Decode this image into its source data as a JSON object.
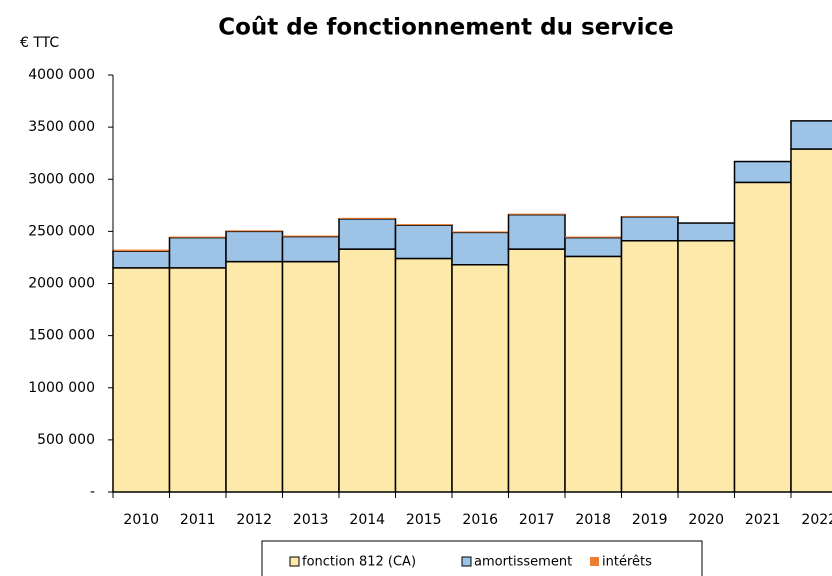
{
  "chart_data": {
    "type": "stacked_bar",
    "title": "Coût de fonctionnement du service",
    "y_axis_label": "€ TTC",
    "categories": [
      "2010",
      "2011",
      "2012",
      "2013",
      "2014",
      "2015",
      "2016",
      "2017",
      "2018",
      "2019",
      "2020",
      "2021",
      "2022"
    ],
    "series": [
      {
        "name": "fonction 812 (CA)",
        "color": "#fde9a9",
        "values": [
          2150000,
          2150000,
          2210000,
          2210000,
          2330000,
          2240000,
          2180000,
          2330000,
          2260000,
          2410000,
          2410000,
          2970000,
          3290000
        ]
      },
      {
        "name": "amortissement",
        "color": "#9dc3e6",
        "values": [
          160000,
          290000,
          290000,
          240000,
          290000,
          320000,
          310000,
          330000,
          180000,
          230000,
          170000,
          200000,
          270000
        ]
      },
      {
        "name": "intérêts",
        "color": "#ed7d31",
        "values": [
          15000,
          10000,
          10000,
          10000,
          10000,
          10000,
          10000,
          10000,
          10000,
          8000,
          0,
          0,
          0
        ]
      }
    ],
    "ylim": [
      0,
      4000000
    ],
    "yticks": [
      {
        "value": 0,
        "label": "-"
      },
      {
        "value": 500000,
        "label": "500 000"
      },
      {
        "value": 1000000,
        "label": "1000 000"
      },
      {
        "value": 1500000,
        "label": "1500 000"
      },
      {
        "value": 2000000,
        "label": "2000 000"
      },
      {
        "value": 2500000,
        "label": "2500 000"
      },
      {
        "value": 3000000,
        "label": "3000 000"
      },
      {
        "value": 3500000,
        "label": "3500 000"
      },
      {
        "value": 4000000,
        "label": "4000 000"
      }
    ],
    "legend": "bottom"
  }
}
